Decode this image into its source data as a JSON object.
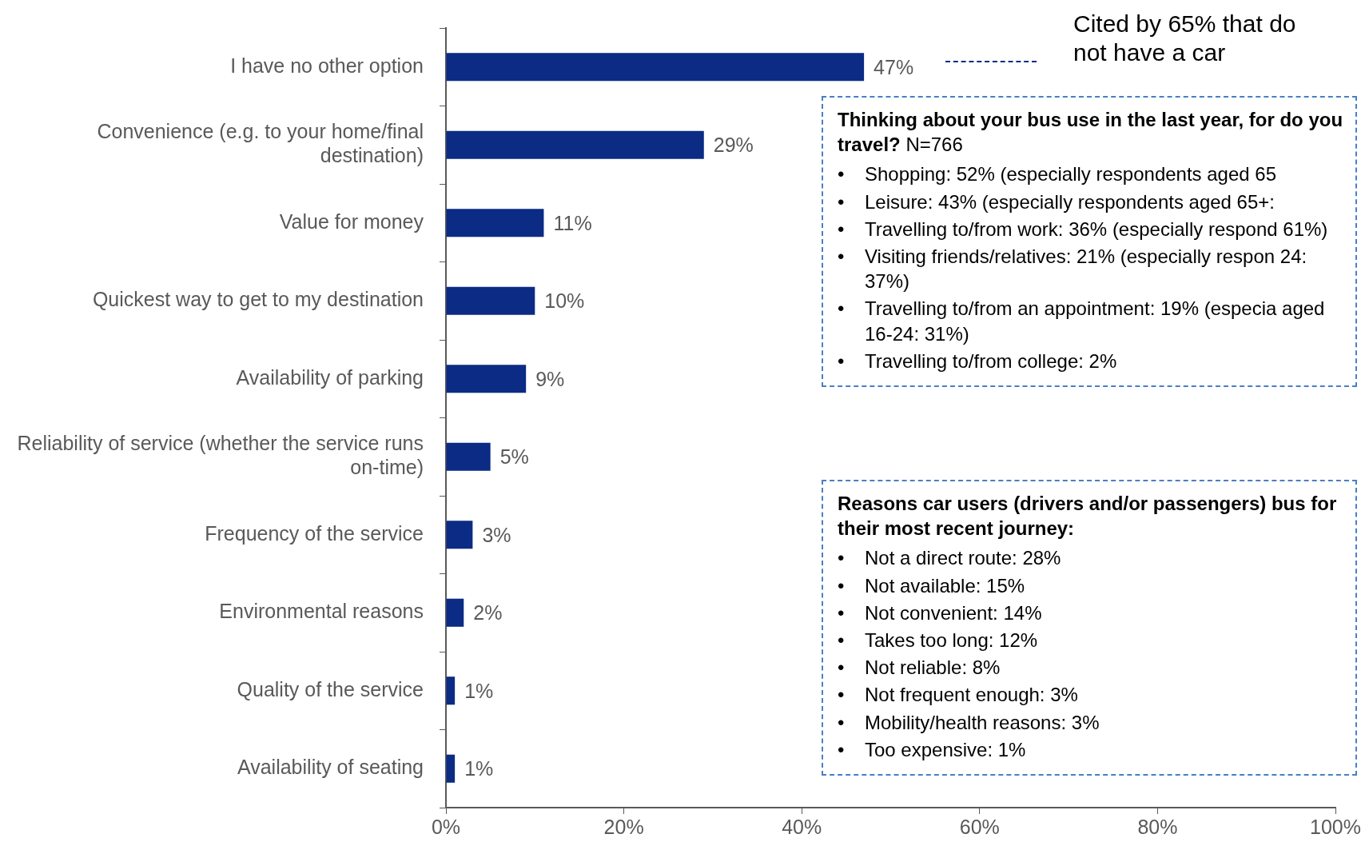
{
  "chart_data": {
    "type": "bar",
    "orientation": "horizontal",
    "categories": [
      "I have no other option",
      "Convenience (e.g. to your home/final destination)",
      "Value for money",
      "Quickest way to get to my destination",
      "Availability of parking",
      "Reliability of service (whether the service runs on-time)",
      "Frequency of the service",
      "Environmental reasons",
      "Quality of the service",
      "Availability of seating"
    ],
    "values": [
      47,
      29,
      11,
      10,
      9,
      5,
      3,
      2,
      1,
      1
    ],
    "value_labels": [
      "47%",
      "29%",
      "11%",
      "10%",
      "9%",
      "5%",
      "3%",
      "2%",
      "1%",
      "1%"
    ],
    "color": "#0b2b84",
    "xlim": [
      0,
      100
    ],
    "xticks": [
      {
        "value": 0,
        "label": "0%"
      },
      {
        "value": 20,
        "label": "20%"
      },
      {
        "value": 40,
        "label": "40%"
      },
      {
        "value": 60,
        "label": "60%"
      },
      {
        "value": 80,
        "label": "80%"
      },
      {
        "value": 100,
        "label": "100%"
      }
    ],
    "grid": false,
    "legend": false,
    "annotations": [
      "Cited by 65% that do not have a car",
      "Thinking about your bus use in the last year, for do you travel?",
      "N=766",
      "• Shopping: 52% (especially respondents aged 65",
      "• Leisure: 43% (especially respondents aged 65+:",
      "• Travelling to/from work: 36% (especially respond 61%)",
      "• Visiting friends/relatives: 21% (especially respon 24: 37%)",
      "• Travelling to/from an appointment: 19% (especia aged 16-24: 31%)",
      "• Travelling to/from college: 2%",
      "Reasons car users (drivers and/or passengers) bus for their most recent journey:",
      "• Not a direct route: 28%",
      "• Not available: 15%",
      "• Not convenient: 14%",
      "• Takes too long: 12%",
      "• Not reliable: 8%",
      "• Not frequent enough: 3%",
      "• Mobility/health reasons: 3%",
      "• Too expensive: 1%"
    ]
  }
}
